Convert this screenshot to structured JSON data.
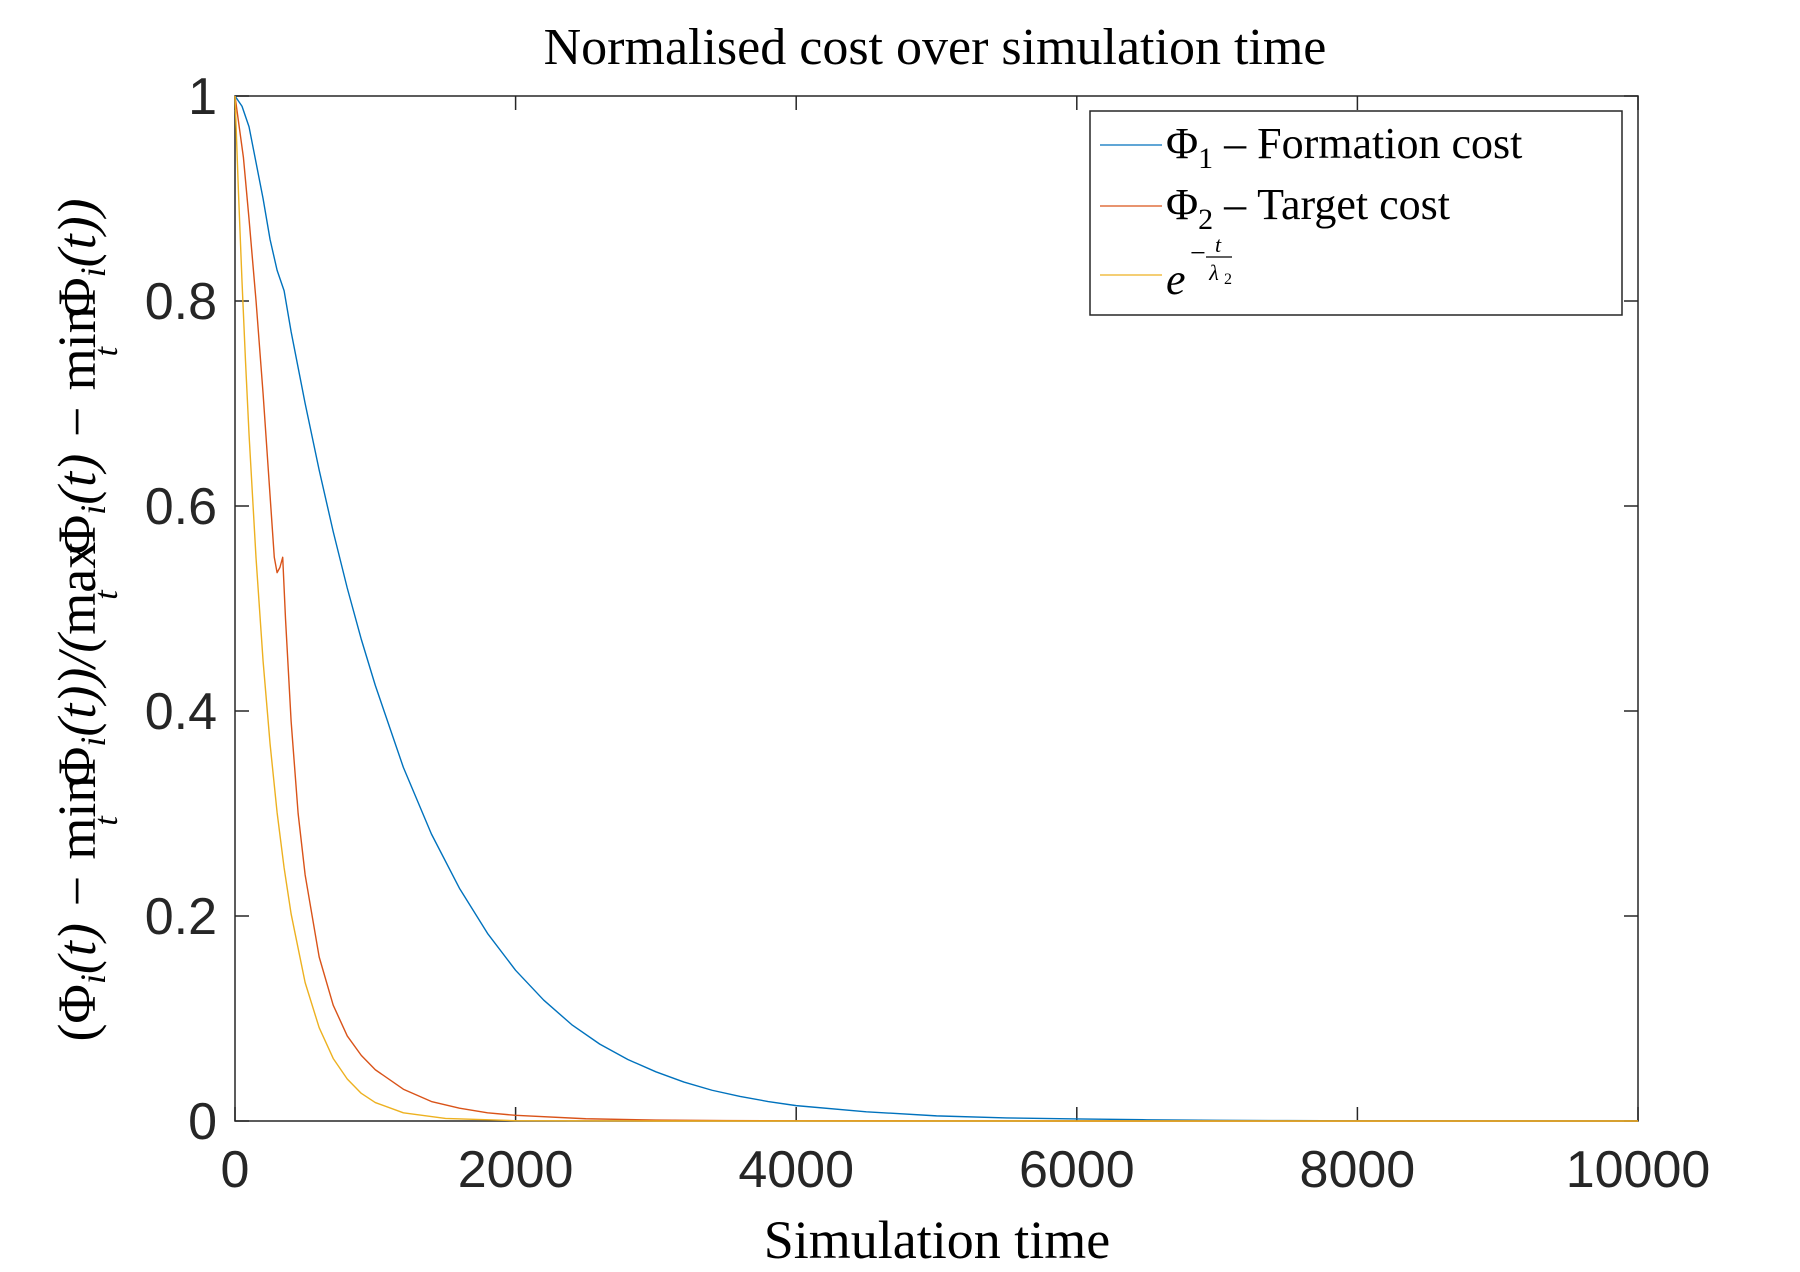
{
  "chart_data": {
    "type": "line",
    "title": "Normalised cost over simulation time",
    "xlabel": "Simulation time",
    "ylabel": "(Φ_i(t) − min_t Φ_i(t))/(max_t Φ_i(t) − min_t Φ_i(t))",
    "xlim": [
      0,
      10000
    ],
    "ylim": [
      0,
      1
    ],
    "xticks": [
      0,
      2000,
      4000,
      6000,
      8000,
      10000
    ],
    "xtick_labels": [
      "0",
      "2000",
      "4000",
      "6000",
      "8000",
      "10000"
    ],
    "yticks": [
      0,
      0.2,
      0.4,
      0.6,
      0.8,
      1
    ],
    "ytick_labels": [
      "0",
      "0.2",
      "0.4",
      "0.6",
      "0.8",
      "1"
    ],
    "grid": false,
    "legend_position": "top-right",
    "series": [
      {
        "name": "Φ1 – Formation cost",
        "color": "#0072BD",
        "x": [
          0,
          50,
          100,
          150,
          200,
          250,
          300,
          350,
          400,
          500,
          600,
          700,
          800,
          900,
          1000,
          1200,
          1400,
          1600,
          1800,
          2000,
          2200,
          2400,
          2600,
          2800,
          3000,
          3200,
          3400,
          3600,
          3800,
          4000,
          4500,
          5000,
          5500,
          6000,
          6500,
          7000,
          7500,
          8000,
          9000,
          10000
        ],
        "y": [
          1.0,
          0.99,
          0.97,
          0.935,
          0.9,
          0.86,
          0.83,
          0.81,
          0.77,
          0.7,
          0.635,
          0.575,
          0.52,
          0.47,
          0.425,
          0.345,
          0.28,
          0.227,
          0.183,
          0.147,
          0.118,
          0.094,
          0.075,
          0.06,
          0.048,
          0.038,
          0.03,
          0.024,
          0.019,
          0.015,
          0.009,
          0.005,
          0.003,
          0.002,
          0.0012,
          0.0007,
          0.0004,
          0.0002,
          0.0001,
          0.0
        ]
      },
      {
        "name": "Φ2 – Target cost",
        "color": "#D95319",
        "x": [
          0,
          30,
          60,
          100,
          150,
          200,
          250,
          280,
          300,
          320,
          340,
          360,
          400,
          450,
          500,
          600,
          700,
          800,
          900,
          1000,
          1200,
          1400,
          1600,
          1800,
          2000,
          2500,
          3000,
          3500,
          4000,
          5000,
          6000,
          8000,
          10000
        ],
        "y": [
          1.0,
          0.97,
          0.94,
          0.88,
          0.8,
          0.71,
          0.61,
          0.55,
          0.535,
          0.54,
          0.55,
          0.49,
          0.39,
          0.3,
          0.24,
          0.16,
          0.113,
          0.083,
          0.064,
          0.05,
          0.031,
          0.019,
          0.0125,
          0.008,
          0.0055,
          0.0022,
          0.0009,
          0.0004,
          0.0002,
          0.0001,
          0.0,
          0.0,
          0.0
        ]
      },
      {
        "name": "e^{−t/λ2}",
        "color": "#EDB120",
        "x": [
          0,
          25,
          50,
          75,
          100,
          150,
          200,
          250,
          300,
          350,
          400,
          500,
          600,
          700,
          800,
          900,
          1000,
          1200,
          1500,
          2000,
          3000,
          5000,
          10000
        ],
        "y": [
          1.0,
          0.905,
          0.819,
          0.741,
          0.67,
          0.549,
          0.449,
          0.368,
          0.301,
          0.247,
          0.202,
          0.135,
          0.091,
          0.061,
          0.041,
          0.027,
          0.018,
          0.008,
          0.0025,
          0.0003,
          0.0,
          0.0,
          0.0
        ]
      }
    ]
  },
  "legend": {
    "entries": [
      {
        "symbol": "Φ",
        "sub": "1",
        "rest": " – Formation cost"
      },
      {
        "symbol": "Φ",
        "sub": "2",
        "rest": " – Target cost"
      },
      {
        "symbol": "e",
        "sup_sign": "−",
        "frac_num": "t",
        "frac_den": "λ",
        "frac_den_sub": "2"
      }
    ]
  },
  "ylabel_parts": {
    "open": "(",
    "phi": "Φ",
    "i": "i",
    "t": "(t) − ",
    "min": "min",
    "t_sub": "t",
    "mid": "(t))/(",
    "max": "max",
    "close": "(t))"
  }
}
